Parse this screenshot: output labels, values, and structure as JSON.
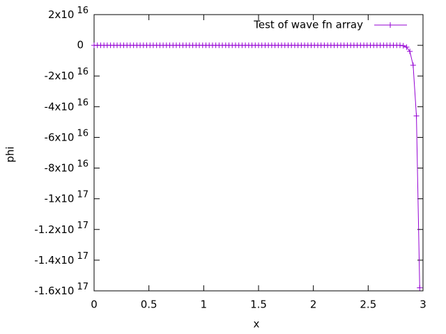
{
  "chart_data": {
    "type": "line",
    "xlabel": "x",
    "ylabel": "phi",
    "xlim": [
      0,
      3
    ],
    "xticks": [
      0,
      0.5,
      1,
      1.5,
      2,
      2.5,
      3
    ],
    "ylim": [
      -1.6e+17,
      2e+16
    ],
    "yticks": [
      {
        "value": 2e+16,
        "label": "2x10",
        "exponent": "16"
      },
      0,
      {
        "value": -2e+16,
        "label": "-2x10",
        "exponent": "16"
      },
      {
        "value": -4e+16,
        "label": "-4x10",
        "exponent": "16"
      },
      {
        "value": -6e+16,
        "label": "-6x10",
        "exponent": "16"
      },
      {
        "value": -8e+16,
        "label": "-8x10",
        "exponent": "16"
      },
      {
        "value": -1e+17,
        "label": "-1x10",
        "exponent": "17"
      },
      {
        "value": -1.2e+17,
        "label": "-1.2x10",
        "exponent": "17"
      },
      {
        "value": -1.4e+17,
        "label": "-1.4x10",
        "exponent": "17"
      },
      {
        "value": -1.6e+17,
        "label": "-1.6x10",
        "exponent": "17"
      }
    ],
    "grid": false,
    "legend": "top-right",
    "x": [
      0,
      0.03,
      0.06,
      0.09,
      0.12,
      0.15,
      0.18,
      0.21,
      0.24,
      0.27,
      0.3,
      0.33,
      0.36,
      0.39,
      0.42,
      0.45,
      0.48,
      0.51,
      0.54,
      0.57,
      0.6,
      0.63,
      0.66,
      0.69,
      0.72,
      0.75,
      0.78,
      0.81,
      0.84,
      0.87,
      0.9,
      0.93,
      0.96,
      0.99,
      1.02,
      1.05,
      1.08,
      1.11,
      1.14,
      1.17,
      1.2,
      1.23,
      1.26,
      1.29,
      1.32,
      1.35,
      1.38,
      1.41,
      1.44,
      1.47,
      1.5,
      1.53,
      1.56,
      1.59,
      1.62,
      1.65,
      1.68,
      1.71,
      1.74,
      1.77,
      1.8,
      1.83,
      1.86,
      1.89,
      1.92,
      1.95,
      1.98,
      2.01,
      2.04,
      2.07,
      2.1,
      2.13,
      2.16,
      2.19,
      2.22,
      2.25,
      2.28,
      2.31,
      2.34,
      2.37,
      2.4,
      2.43,
      2.46,
      2.49,
      2.52,
      2.55,
      2.58,
      2.61,
      2.64,
      2.67,
      2.7,
      2.73,
      2.76,
      2.79,
      2.82,
      2.85,
      2.88,
      2.91,
      2.94,
      2.97
    ],
    "series": [
      {
        "name": "Test of wave fn array",
        "color": "#9400d3",
        "values": [
          0,
          0,
          0,
          0,
          0,
          0,
          0,
          0,
          0,
          0,
          0,
          0,
          0,
          0,
          0,
          0,
          0,
          0,
          0,
          0,
          0,
          0,
          0,
          0,
          0,
          0,
          0,
          0,
          0,
          0,
          0,
          0,
          0,
          0,
          0,
          0,
          0,
          0,
          0,
          0,
          0,
          0,
          0,
          0,
          0,
          0,
          0,
          0,
          0,
          0,
          0,
          0,
          0,
          0,
          0,
          0,
          0,
          0,
          0,
          0,
          0,
          0,
          0,
          0,
          0,
          0,
          0,
          0,
          0,
          0,
          0,
          0,
          0,
          0,
          0,
          0,
          0,
          0,
          0,
          0,
          0,
          0,
          0,
          0,
          0,
          0,
          0,
          0,
          0,
          0,
          0,
          0,
          0,
          0,
          -300000000000000.0,
          -1200000000000000.0,
          -4000000000000000.0,
          -1.3e+16,
          -4.6e+16,
          -1.58e+17
        ]
      }
    ]
  }
}
